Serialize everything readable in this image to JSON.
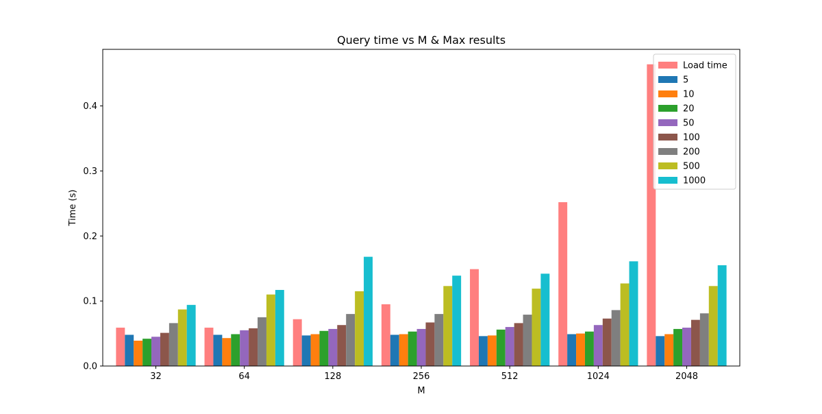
{
  "chart_data": {
    "type": "bar",
    "title": "Query time vs M & Max results",
    "xlabel": "M",
    "ylabel": "Time (s)",
    "categories": [
      "32",
      "64",
      "128",
      "256",
      "512",
      "1024",
      "2048"
    ],
    "ylim": [
      0,
      0.487
    ],
    "yticks": [
      0.0,
      0.1,
      0.2,
      0.3,
      0.4
    ],
    "ytick_labels": [
      "0.0",
      "0.1",
      "0.2",
      "0.3",
      "0.4"
    ],
    "grid": false,
    "legend_position": "top-right",
    "series": [
      {
        "name": "Load time",
        "color": "#ff7f7f",
        "values": [
          0.059,
          0.059,
          0.072,
          0.095,
          0.149,
          0.252,
          0.464
        ]
      },
      {
        "name": "5",
        "color": "#1f77b4",
        "values": [
          0.048,
          0.048,
          0.047,
          0.048,
          0.046,
          0.049,
          0.046
        ]
      },
      {
        "name": "10",
        "color": "#ff7f0e",
        "values": [
          0.039,
          0.043,
          0.049,
          0.049,
          0.047,
          0.05,
          0.049
        ]
      },
      {
        "name": "20",
        "color": "#2ca02c",
        "values": [
          0.042,
          0.049,
          0.054,
          0.053,
          0.056,
          0.053,
          0.057
        ]
      },
      {
        "name": "50",
        "color": "#9467bd",
        "values": [
          0.045,
          0.055,
          0.057,
          0.057,
          0.06,
          0.063,
          0.059
        ]
      },
      {
        "name": "100",
        "color": "#8c564b",
        "values": [
          0.051,
          0.058,
          0.063,
          0.067,
          0.066,
          0.073,
          0.071
        ]
      },
      {
        "name": "200",
        "color": "#7f7f7f",
        "values": [
          0.066,
          0.075,
          0.08,
          0.08,
          0.079,
          0.086,
          0.081
        ]
      },
      {
        "name": "500",
        "color": "#bcbd22",
        "values": [
          0.087,
          0.11,
          0.115,
          0.123,
          0.119,
          0.127,
          0.123
        ]
      },
      {
        "name": "1000",
        "color": "#17becf",
        "values": [
          0.094,
          0.117,
          0.168,
          0.139,
          0.142,
          0.161,
          0.155
        ]
      }
    ]
  }
}
